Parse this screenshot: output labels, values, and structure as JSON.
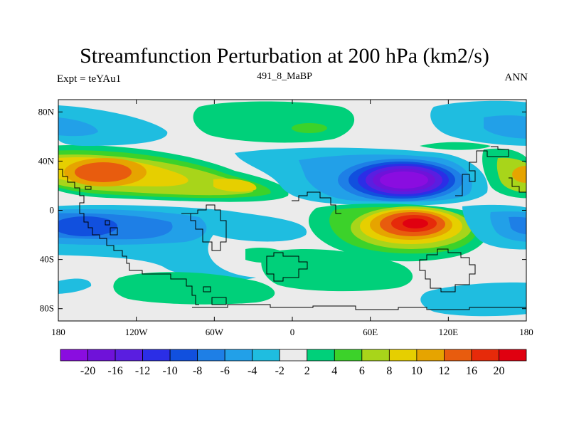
{
  "chart_data": {
    "type": "heatmap",
    "title": "Streamfunction Perturbation at 200 hPa (km2/s)",
    "left_string": "Expt = teYAu1",
    "center_string": "491_8_MaBP",
    "right_string": "ANN",
    "x_ticks": [
      "180",
      "120W",
      "60W",
      "0",
      "60E",
      "120E",
      "180"
    ],
    "y_ticks": [
      "80N",
      "40N",
      "0",
      "40S",
      "80S"
    ],
    "xlim": [
      -180,
      180
    ],
    "ylim": [
      -90,
      90
    ],
    "colorbar_labels": [
      "-20",
      "-16",
      "-12",
      "-10",
      "-8",
      "-6",
      "-4",
      "-2",
      "2",
      "4",
      "6",
      "8",
      "10",
      "12",
      "16",
      "20"
    ],
    "colorbar_colors": [
      "#8a0de0",
      "#6f12d9",
      "#5a1ee0",
      "#2b2ee6",
      "#1150de",
      "#1e7fe6",
      "#22a0e8",
      "#1fbde0",
      "#ebebeb",
      "#00d07a",
      "#3cd22a",
      "#a8d51a",
      "#e6cf00",
      "#e6a400",
      "#e85c0e",
      "#e62a0a",
      "#e00010"
    ]
  }
}
